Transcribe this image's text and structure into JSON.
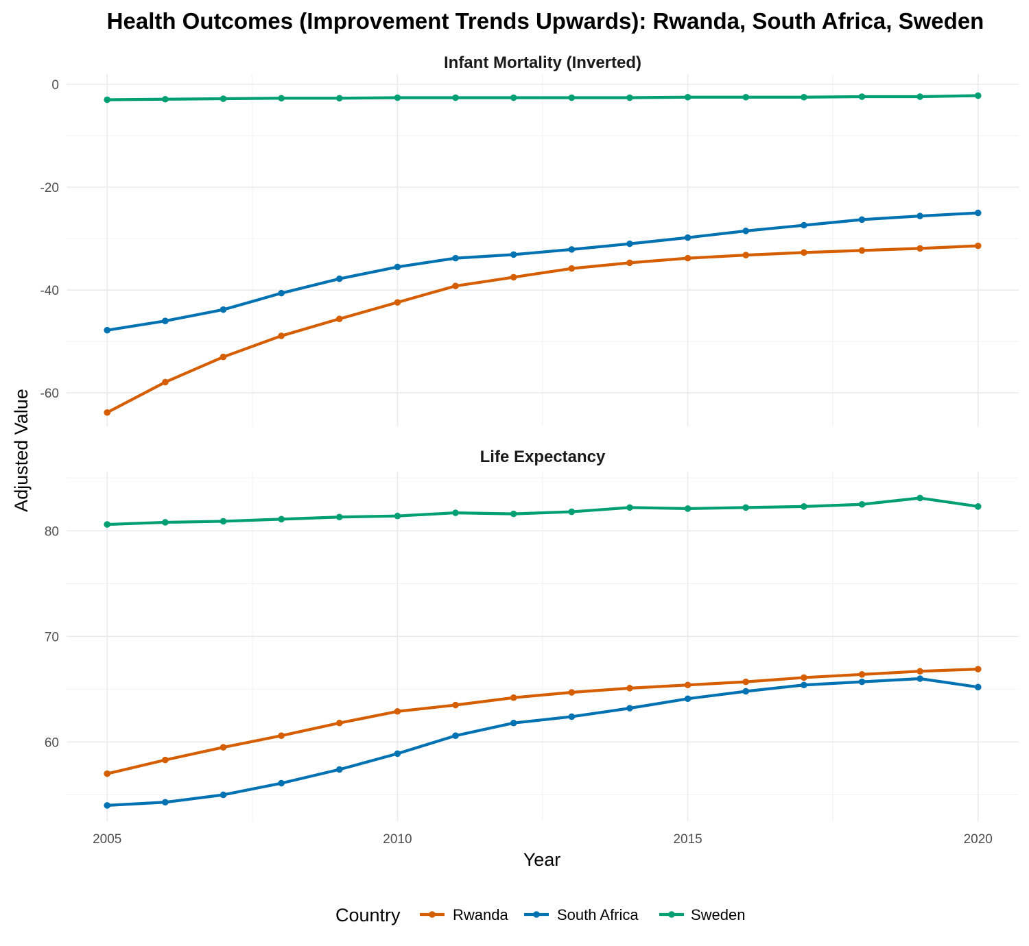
{
  "title": "Health Outcomes (Improvement Trends Upwards): Rwanda, South Africa, Sweden",
  "xlabel": "Year",
  "ylabel": "Adjusted Value",
  "legend": {
    "title": "Country",
    "position": "bottom",
    "items": [
      {
        "label": "Rwanda",
        "color": "#D55E00"
      },
      {
        "label": "South Africa",
        "color": "#0072B2"
      },
      {
        "label": "Sweden",
        "color": "#009E73"
      }
    ]
  },
  "x_ticks": [
    "2005",
    "2010",
    "2015",
    "2020"
  ],
  "chart_data": {
    "type": "line",
    "xlabel": "Year",
    "ylabel": "Adjusted Value",
    "xlim": [
      2004.3,
      2020.7
    ],
    "x": [
      2005,
      2006,
      2007,
      2008,
      2009,
      2010,
      2011,
      2012,
      2013,
      2014,
      2015,
      2016,
      2017,
      2018,
      2019,
      2020
    ],
    "grid": true,
    "facets": [
      {
        "title": "Infant Mortality (Inverted)",
        "ylim": [
          -66.5,
          2
        ],
        "y_ticks": [
          "0",
          "-20",
          "-40",
          "-60"
        ],
        "y_tick_values": [
          0,
          -20,
          -40,
          -60
        ],
        "series": [
          {
            "name": "Rwanda",
            "color": "#D55E00",
            "values": [
              -63.8,
              -57.9,
              -53.0,
              -48.9,
              -45.6,
              -42.4,
              -39.2,
              -37.5,
              -35.8,
              -34.7,
              -33.8,
              -33.2,
              -32.7,
              -32.3,
              -31.9,
              -31.4
            ]
          },
          {
            "name": "South Africa",
            "color": "#0072B2",
            "values": [
              -47.8,
              -46.0,
              -43.8,
              -40.6,
              -37.8,
              -35.5,
              -33.8,
              -33.1,
              -32.1,
              -31.0,
              -29.8,
              -28.5,
              -27.4,
              -26.3,
              -25.6,
              -25.0
            ]
          },
          {
            "name": "Sweden",
            "color": "#009E73",
            "values": [
              -3.0,
              -2.9,
              -2.8,
              -2.7,
              -2.7,
              -2.6,
              -2.6,
              -2.6,
              -2.6,
              -2.6,
              -2.5,
              -2.5,
              -2.5,
              -2.4,
              -2.4,
              -2.2
            ]
          }
        ]
      },
      {
        "title": "Life Expectancy",
        "ylim": [
          52.5,
          85.6
        ],
        "y_ticks": [
          "80",
          "70",
          "60"
        ],
        "y_tick_values": [
          80,
          70,
          60
        ],
        "series": [
          {
            "name": "Rwanda",
            "color": "#D55E00",
            "values": [
              57.0,
              58.3,
              59.5,
              60.6,
              61.8,
              62.9,
              63.5,
              64.2,
              64.7,
              65.1,
              65.4,
              65.7,
              66.1,
              66.4,
              66.7,
              66.9
            ]
          },
          {
            "name": "South Africa",
            "color": "#0072B2",
            "values": [
              54.0,
              54.3,
              55.0,
              56.1,
              57.4,
              58.9,
              60.6,
              61.8,
              62.4,
              63.2,
              64.1,
              64.8,
              65.4,
              65.7,
              66.0,
              65.2
            ]
          },
          {
            "name": "Sweden",
            "color": "#009E73",
            "values": [
              80.6,
              80.8,
              80.9,
              81.1,
              81.3,
              81.4,
              81.7,
              81.6,
              81.8,
              82.2,
              82.1,
              82.2,
              82.3,
              82.5,
              83.1,
              82.3
            ]
          }
        ]
      }
    ]
  }
}
